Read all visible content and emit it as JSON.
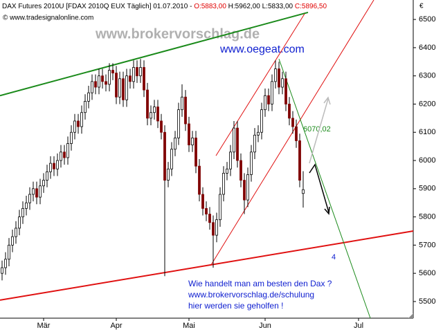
{
  "chart_data": {
    "type": "candlestick",
    "header": {
      "name": "DAX Futures 2010U [FDAX 2010Q EUX  Täglich] 01.07.2010 - ",
      "open": "O:5883,00",
      "high_low": " H:5962,00 L:5833,00 ",
      "close": "C:5896,50"
    },
    "copyright": "© www.tradesignalonline.com",
    "watermark": "www.brokervorschlag.de",
    "site": "www.oegeat.com",
    "currency": "€",
    "annotations": {
      "level": "6070,02",
      "wave": "4"
    },
    "note": [
      "Wie handelt man am besten den Dax ?",
      "www.brokervorschlag.de/schulung",
      "hier werden sie geholfen !"
    ],
    "categories": [
      null,
      null,
      null,
      null,
      null,
      null,
      null,
      null,
      null,
      null,
      null,
      null,
      "Mär",
      null,
      null,
      null,
      null,
      null,
      null,
      null,
      null,
      null,
      null,
      null,
      null,
      null,
      null,
      null,
      null,
      null,
      null,
      null,
      null,
      "Apr",
      null,
      null,
      null,
      null,
      null,
      null,
      null,
      null,
      null,
      null,
      null,
      null,
      null,
      null,
      null,
      null,
      null,
      null,
      null,
      null,
      "Mai",
      null,
      null,
      null,
      null,
      null,
      null,
      null,
      null,
      null,
      null,
      null,
      null,
      null,
      null,
      null,
      null,
      null,
      null,
      null,
      null,
      null,
      "Jun",
      null,
      null,
      null,
      null,
      null,
      null,
      null,
      null,
      null,
      null,
      null,
      null,
      null,
      null,
      null,
      null,
      null,
      null,
      null,
      null,
      null,
      null,
      null,
      null,
      null,
      null,
      "Jul"
    ],
    "open": [
      5600,
      5620,
      5650,
      5700,
      5730,
      5760,
      5800,
      5830,
      5850,
      5880,
      5900,
      5870,
      5910,
      5930,
      5960,
      5990,
      5970,
      6000,
      6030,
      6010,
      6060,
      6100,
      6140,
      6120,
      6170,
      6210,
      6240,
      6280,
      6260,
      6300,
      6280,
      6270,
      6320,
      6310,
      6225,
      6290,
      6215,
      6300,
      6280,
      6330,
      6300,
      6330,
      6250,
      6150,
      6170,
      6190,
      6140,
      6100,
      5930,
      5970,
      6040,
      6080,
      6180,
      6225,
      6130,
      6055,
      6080,
      5980,
      5880,
      5830,
      5810,
      5780,
      5735,
      5790,
      5880,
      5955,
      5970,
      6030,
      6115,
      6000,
      5930,
      5860,
      5950,
      6030,
      6090,
      6100,
      6180,
      6230,
      6200,
      6280,
      6325,
      6260,
      6290,
      6200,
      6150,
      6120,
      6070,
      5883,
      null,
      null,
      null,
      null,
      null,
      null,
      null,
      null,
      null,
      null,
      null,
      null,
      null,
      null,
      null,
      null
    ],
    "high": [
      5645,
      5675,
      5725,
      5755,
      5785,
      5825,
      5855,
      5875,
      5905,
      5925,
      5925,
      5935,
      5955,
      5985,
      6015,
      6015,
      6025,
      6055,
      6055,
      6085,
      6125,
      6165,
      6165,
      6195,
      6235,
      6265,
      6305,
      6305,
      6325,
      6325,
      6305,
      6345,
      6345,
      6335,
      6315,
      6315,
      6325,
      6325,
      6355,
      6355,
      6360,
      6355,
      6275,
      6195,
      6215,
      6215,
      6165,
      6125,
      5995,
      6065,
      6105,
      6205,
      6270,
      6250,
      6155,
      6105,
      6105,
      6005,
      5905,
      5855,
      5835,
      5805,
      5815,
      5905,
      5980,
      5995,
      6055,
      6140,
      6140,
      6025,
      5955,
      5975,
      6055,
      6115,
      6125,
      6205,
      6255,
      6255,
      6305,
      6355,
      6350,
      6315,
      6315,
      6225,
      6175,
      6145,
      6095,
      5962,
      null,
      null,
      null,
      null,
      null,
      null,
      null,
      null,
      null,
      null,
      null,
      null,
      null,
      null,
      null,
      null
    ],
    "low": [
      5575,
      5595,
      5625,
      5675,
      5705,
      5735,
      5775,
      5805,
      5825,
      5855,
      5845,
      5845,
      5885,
      5905,
      5935,
      5945,
      5945,
      5975,
      5985,
      5985,
      6035,
      6075,
      6095,
      6095,
      6145,
      6185,
      6215,
      6235,
      6235,
      6255,
      6245,
      6245,
      6285,
      6200,
      6200,
      6190,
      6190,
      6255,
      6255,
      6275,
      6275,
      6225,
      6125,
      6125,
      6145,
      6115,
      6075,
      5590,
      5905,
      5945,
      6015,
      6055,
      6155,
      6105,
      6030,
      6030,
      5955,
      5855,
      5805,
      5785,
      5755,
      5620,
      5710,
      5765,
      5855,
      5930,
      5945,
      6005,
      5975,
      5905,
      5810,
      5835,
      5925,
      6005,
      6065,
      6075,
      6155,
      6175,
      6175,
      6255,
      6235,
      6235,
      6175,
      6125,
      6095,
      6045,
      5905,
      5833,
      null,
      null,
      null,
      null,
      null,
      null,
      null,
      null,
      null,
      null,
      null,
      null,
      null,
      null,
      null,
      null
    ],
    "close": [
      5620,
      5650,
      5700,
      5730,
      5760,
      5800,
      5830,
      5850,
      5880,
      5900,
      5870,
      5910,
      5930,
      5960,
      5990,
      5970,
      6000,
      6030,
      6010,
      6060,
      6100,
      6140,
      6120,
      6170,
      6210,
      6240,
      6280,
      6260,
      6300,
      6280,
      6270,
      6320,
      6310,
      6225,
      6290,
      6215,
      6300,
      6280,
      6330,
      6300,
      6330,
      6250,
      6150,
      6170,
      6190,
      6140,
      6100,
      5930,
      5970,
      6040,
      6080,
      6180,
      6225,
      6130,
      6055,
      6080,
      5980,
      5880,
      5830,
      5810,
      5780,
      5735,
      5790,
      5880,
      5955,
      5970,
      6030,
      6115,
      6000,
      5930,
      5860,
      5950,
      6030,
      6090,
      6100,
      6180,
      6230,
      6200,
      6280,
      6325,
      6260,
      6290,
      6200,
      6150,
      6120,
      6070,
      5930,
      5896.5,
      null,
      null,
      null,
      null,
      null,
      null,
      null,
      null,
      null,
      null,
      null,
      null,
      null,
      null,
      null,
      null
    ],
    "up_color": "#ffffff",
    "down_color": "#800000",
    "trendlines": [
      {
        "color": "#1a8a1a",
        "x": [
          -0.6,
          88.4
        ],
        "y": [
          6230,
          6525
        ]
      },
      {
        "color": "#e01010",
        "x": [
          -0.6,
          118.8
        ],
        "y": [
          5505,
          5750
        ]
      },
      {
        "color": "#e01010",
        "x": [
          60.4,
          107.4
        ],
        "y": [
          5630,
          6569
        ]
      },
      {
        "color": "#e01010",
        "x": [
          61.8,
          87.4
        ],
        "y": [
          6017,
          6520
        ]
      },
      {
        "color": "#1a8a1a",
        "x": [
          80,
          106.4
        ],
        "y": [
          6360,
          5441
        ]
      }
    ],
    "xlim": [
      -0.6,
      118.8
    ],
    "ylim": [
      5441,
      6569
    ],
    "yticks": [
      5500,
      5600,
      5700,
      5800,
      5900,
      6000,
      6100,
      6200,
      6300,
      6400,
      6500
    ]
  }
}
